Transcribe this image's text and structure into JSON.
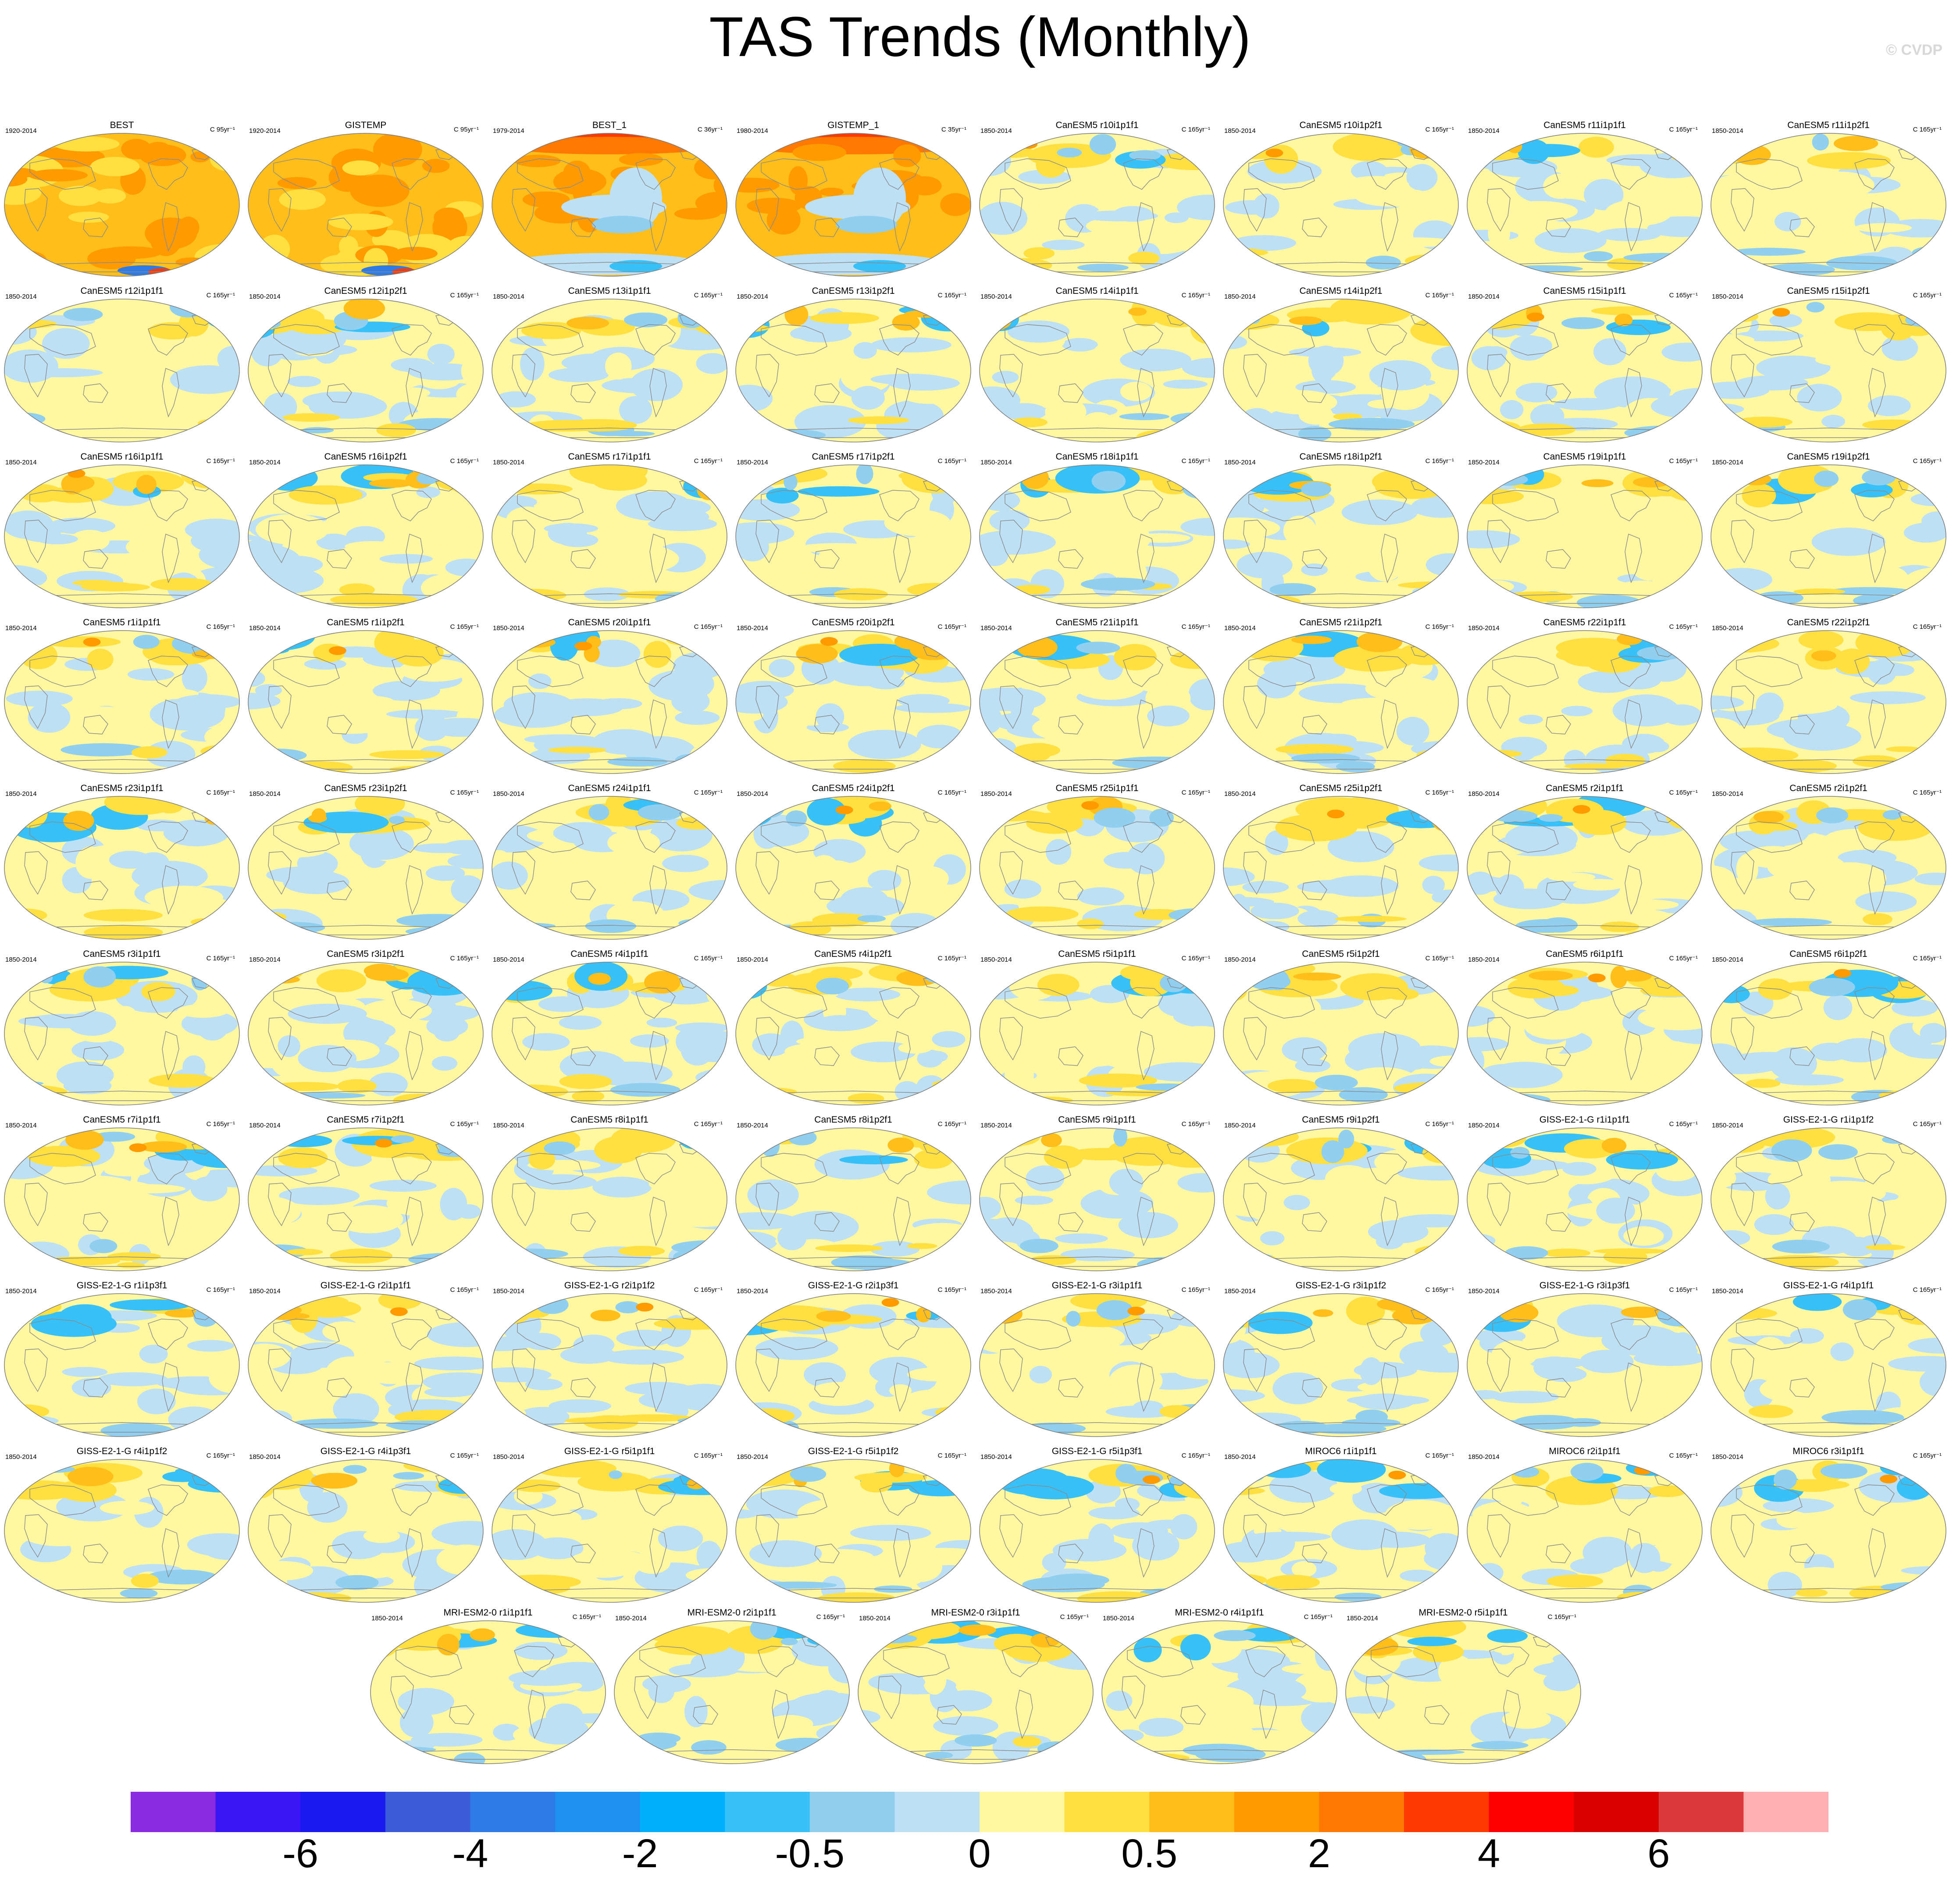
{
  "title": "TAS Trends (Monthly)",
  "copyright": "© CVDP",
  "panels": [
    {
      "title": "BEST",
      "years": "1920-2014",
      "units": "C 95yr⁻¹"
    },
    {
      "title": "GISTEMP",
      "years": "1920-2014",
      "units": "C 95yr⁻¹"
    },
    {
      "title": "BEST_1",
      "years": "1979-2014",
      "units": "C 36yr⁻¹"
    },
    {
      "title": "GISTEMP_1",
      "years": "1980-2014",
      "units": "C 35yr⁻¹"
    },
    {
      "title": "CanESM5 r10i1p1f1",
      "years": "1850-2014",
      "units": "C 165yr⁻¹"
    },
    {
      "title": "CanESM5 r10i1p2f1",
      "years": "1850-2014",
      "units": "C 165yr⁻¹"
    },
    {
      "title": "CanESM5 r11i1p1f1",
      "years": "1850-2014",
      "units": "C 165yr⁻¹"
    },
    {
      "title": "CanESM5 r11i1p2f1",
      "years": "1850-2014",
      "units": "C 165yr⁻¹"
    },
    {
      "title": "CanESM5 r12i1p1f1",
      "years": "1850-2014",
      "units": "C 165yr⁻¹"
    },
    {
      "title": "CanESM5 r12i1p2f1",
      "years": "1850-2014",
      "units": "C 165yr⁻¹"
    },
    {
      "title": "CanESM5 r13i1p1f1",
      "years": "1850-2014",
      "units": "C 165yr⁻¹"
    },
    {
      "title": "CanESM5 r13i1p2f1",
      "years": "1850-2014",
      "units": "C 165yr⁻¹"
    },
    {
      "title": "CanESM5 r14i1p1f1",
      "years": "1850-2014",
      "units": "C 165yr⁻¹"
    },
    {
      "title": "CanESM5 r14i1p2f1",
      "years": "1850-2014",
      "units": "C 165yr⁻¹"
    },
    {
      "title": "CanESM5 r15i1p1f1",
      "years": "1850-2014",
      "units": "C 165yr⁻¹"
    },
    {
      "title": "CanESM5 r15i1p2f1",
      "years": "1850-2014",
      "units": "C 165yr⁻¹"
    },
    {
      "title": "CanESM5 r16i1p1f1",
      "years": "1850-2014",
      "units": "C 165yr⁻¹"
    },
    {
      "title": "CanESM5 r16i1p2f1",
      "years": "1850-2014",
      "units": "C 165yr⁻¹"
    },
    {
      "title": "CanESM5 r17i1p1f1",
      "years": "1850-2014",
      "units": "C 165yr⁻¹"
    },
    {
      "title": "CanESM5 r17i1p2f1",
      "years": "1850-2014",
      "units": "C 165yr⁻¹"
    },
    {
      "title": "CanESM5 r18i1p1f1",
      "years": "1850-2014",
      "units": "C 165yr⁻¹"
    },
    {
      "title": "CanESM5 r18i1p2f1",
      "years": "1850-2014",
      "units": "C 165yr⁻¹"
    },
    {
      "title": "CanESM5 r19i1p1f1",
      "years": "1850-2014",
      "units": "C 165yr⁻¹"
    },
    {
      "title": "CanESM5 r19i1p2f1",
      "years": "1850-2014",
      "units": "C 165yr⁻¹"
    },
    {
      "title": "CanESM5 r1i1p1f1",
      "years": "1850-2014",
      "units": "C 165yr⁻¹"
    },
    {
      "title": "CanESM5 r1i1p2f1",
      "years": "1850-2014",
      "units": "C 165yr⁻¹"
    },
    {
      "title": "CanESM5 r20i1p1f1",
      "years": "1850-2014",
      "units": "C 165yr⁻¹"
    },
    {
      "title": "CanESM5 r20i1p2f1",
      "years": "1850-2014",
      "units": "C 165yr⁻¹"
    },
    {
      "title": "CanESM5 r21i1p1f1",
      "years": "1850-2014",
      "units": "C 165yr⁻¹"
    },
    {
      "title": "CanESM5 r21i1p2f1",
      "years": "1850-2014",
      "units": "C 165yr⁻¹"
    },
    {
      "title": "CanESM5 r22i1p1f1",
      "years": "1850-2014",
      "units": "C 165yr⁻¹"
    },
    {
      "title": "CanESM5 r22i1p2f1",
      "years": "1850-2014",
      "units": "C 165yr⁻¹"
    },
    {
      "title": "CanESM5 r23i1p1f1",
      "years": "1850-2014",
      "units": "C 165yr⁻¹"
    },
    {
      "title": "CanESM5 r23i1p2f1",
      "years": "1850-2014",
      "units": "C 165yr⁻¹"
    },
    {
      "title": "CanESM5 r24i1p1f1",
      "years": "1850-2014",
      "units": "C 165yr⁻¹"
    },
    {
      "title": "CanESM5 r24i1p2f1",
      "years": "1850-2014",
      "units": "C 165yr⁻¹"
    },
    {
      "title": "CanESM5 r25i1p1f1",
      "years": "1850-2014",
      "units": "C 165yr⁻¹"
    },
    {
      "title": "CanESM5 r25i1p2f1",
      "years": "1850-2014",
      "units": "C 165yr⁻¹"
    },
    {
      "title": "CanESM5 r2i1p1f1",
      "years": "1850-2014",
      "units": "C 165yr⁻¹"
    },
    {
      "title": "CanESM5 r2i1p2f1",
      "years": "1850-2014",
      "units": "C 165yr⁻¹"
    },
    {
      "title": "CanESM5 r3i1p1f1",
      "years": "1850-2014",
      "units": "C 165yr⁻¹"
    },
    {
      "title": "CanESM5 r3i1p2f1",
      "years": "1850-2014",
      "units": "C 165yr⁻¹"
    },
    {
      "title": "CanESM5 r4i1p1f1",
      "years": "1850-2014",
      "units": "C 165yr⁻¹"
    },
    {
      "title": "CanESM5 r4i1p2f1",
      "years": "1850-2014",
      "units": "C 165yr⁻¹"
    },
    {
      "title": "CanESM5 r5i1p1f1",
      "years": "1850-2014",
      "units": "C 165yr⁻¹"
    },
    {
      "title": "CanESM5 r5i1p2f1",
      "years": "1850-2014",
      "units": "C 165yr⁻¹"
    },
    {
      "title": "CanESM5 r6i1p1f1",
      "years": "1850-2014",
      "units": "C 165yr⁻¹"
    },
    {
      "title": "CanESM5 r6i1p2f1",
      "years": "1850-2014",
      "units": "C 165yr⁻¹"
    },
    {
      "title": "CanESM5 r7i1p1f1",
      "years": "1850-2014",
      "units": "C 165yr⁻¹"
    },
    {
      "title": "CanESM5 r7i1p2f1",
      "years": "1850-2014",
      "units": "C 165yr⁻¹"
    },
    {
      "title": "CanESM5 r8i1p1f1",
      "years": "1850-2014",
      "units": "C 165yr⁻¹"
    },
    {
      "title": "CanESM5 r8i1p2f1",
      "years": "1850-2014",
      "units": "C 165yr⁻¹"
    },
    {
      "title": "CanESM5 r9i1p1f1",
      "years": "1850-2014",
      "units": "C 165yr⁻¹"
    },
    {
      "title": "CanESM5 r9i1p2f1",
      "years": "1850-2014",
      "units": "C 165yr⁻¹"
    },
    {
      "title": "GISS-E2-1-G r1i1p1f1",
      "years": "1850-2014",
      "units": "C 165yr⁻¹"
    },
    {
      "title": "GISS-E2-1-G r1i1p1f2",
      "years": "1850-2014",
      "units": "C 165yr⁻¹"
    },
    {
      "title": "GISS-E2-1-G r1i1p3f1",
      "years": "1850-2014",
      "units": "C 165yr⁻¹"
    },
    {
      "title": "GISS-E2-1-G r2i1p1f1",
      "years": "1850-2014",
      "units": "C 165yr⁻¹"
    },
    {
      "title": "GISS-E2-1-G r2i1p1f2",
      "years": "1850-2014",
      "units": "C 165yr⁻¹"
    },
    {
      "title": "GISS-E2-1-G r2i1p3f1",
      "years": "1850-2014",
      "units": "C 165yr⁻¹"
    },
    {
      "title": "GISS-E2-1-G r3i1p1f1",
      "years": "1850-2014",
      "units": "C 165yr⁻¹"
    },
    {
      "title": "GISS-E2-1-G r3i1p1f2",
      "years": "1850-2014",
      "units": "C 165yr⁻¹"
    },
    {
      "title": "GISS-E2-1-G r3i1p3f1",
      "years": "1850-2014",
      "units": "C 165yr⁻¹"
    },
    {
      "title": "GISS-E2-1-G r4i1p1f1",
      "years": "1850-2014",
      "units": "C 165yr⁻¹"
    },
    {
      "title": "GISS-E2-1-G r4i1p1f2",
      "years": "1850-2014",
      "units": "C 165yr⁻¹"
    },
    {
      "title": "GISS-E2-1-G r4i1p3f1",
      "years": "1850-2014",
      "units": "C 165yr⁻¹"
    },
    {
      "title": "GISS-E2-1-G r5i1p1f1",
      "years": "1850-2014",
      "units": "C 165yr⁻¹"
    },
    {
      "title": "GISS-E2-1-G r5i1p1f2",
      "years": "1850-2014",
      "units": "C 165yr⁻¹"
    },
    {
      "title": "GISS-E2-1-G r5i1p3f1",
      "years": "1850-2014",
      "units": "C 165yr⁻¹"
    },
    {
      "title": "MIROC6 r1i1p1f1",
      "years": "1850-2014",
      "units": "C 165yr⁻¹"
    },
    {
      "title": "MIROC6 r2i1p1f1",
      "years": "1850-2014",
      "units": "C 165yr⁻¹"
    },
    {
      "title": "MIROC6 r3i1p1f1",
      "years": "1850-2014",
      "units": "C 165yr⁻¹"
    },
    {
      "title": "MRI-ESM2-0 r1i1p1f1",
      "years": "1850-2014",
      "units": "C 165yr⁻¹"
    },
    {
      "title": "MRI-ESM2-0 r2i1p1f1",
      "years": "1850-2014",
      "units": "C 165yr⁻¹"
    },
    {
      "title": "MRI-ESM2-0 r3i1p1f1",
      "years": "1850-2014",
      "units": "C 165yr⁻¹"
    },
    {
      "title": "MRI-ESM2-0 r4i1p1f1",
      "years": "1850-2014",
      "units": "C 165yr⁻¹"
    },
    {
      "title": "MRI-ESM2-0 r5i1p1f1",
      "years": "1850-2014",
      "units": "C 165yr⁻¹"
    }
  ],
  "chart_data": {
    "type": "heatmap",
    "title": "TAS Trends (Monthly)",
    "variable": "TAS",
    "colorbar": {
      "colors": [
        "#8a2be2",
        "#3a16f4",
        "#1a1af0",
        "#3a5ad8",
        "#2e7be8",
        "#1e90f0",
        "#00b0ff",
        "#38c0f8",
        "#90cff0",
        "#bde0f5",
        "#fff8a0",
        "#ffe040",
        "#ffbe1a",
        "#ff9a00",
        "#ff7800",
        "#ff3a00",
        "#ff0000",
        "#d80000",
        "#dc3a3a",
        "#ffb0b0"
      ],
      "tick_labels": [
        "-6",
        "-4",
        "-2",
        "-0.5",
        "0",
        "0.5",
        "2",
        "4",
        "6"
      ],
      "tick_boundaries": [
        2,
        4,
        6,
        8,
        10,
        12,
        14,
        16,
        18
      ]
    }
  }
}
